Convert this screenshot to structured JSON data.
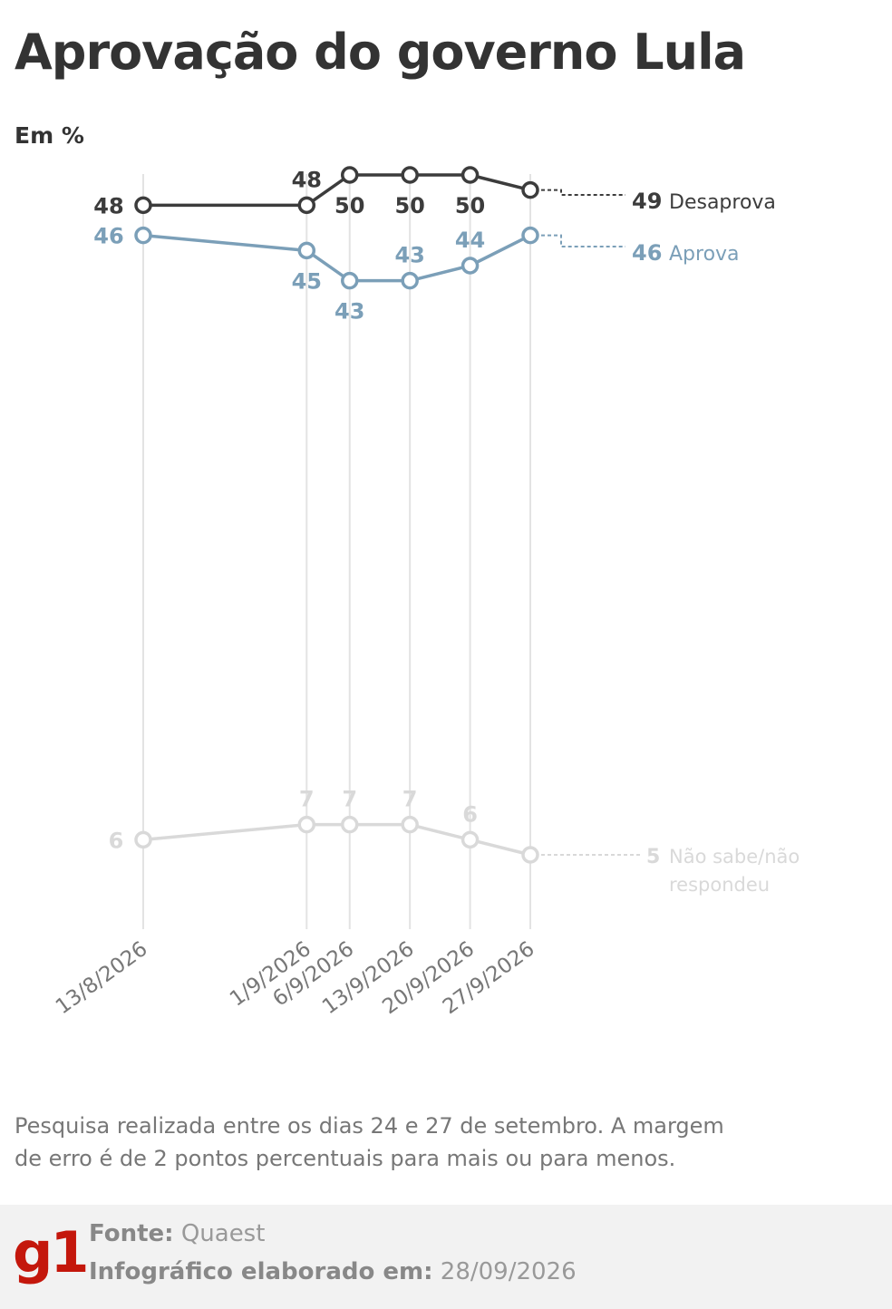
{
  "header": {
    "title": "Aprovação do governo Lula",
    "subtitle": "Em %"
  },
  "chart_data": {
    "type": "line",
    "x": [
      "13/8/2026",
      "1/9/2026",
      "6/9/2026",
      "13/9/2026",
      "20/9/2026",
      "27/9/2026"
    ],
    "ylim": [
      0,
      50
    ],
    "grid": "vertical lines at each date",
    "series": [
      {
        "name": "Desaprova",
        "values": [
          48,
          48,
          50,
          50,
          50,
          49
        ],
        "color": "#3c3c3c"
      },
      {
        "name": "Aprova",
        "values": [
          46,
          45,
          43,
          43,
          44,
          46
        ],
        "color": "#7b9fb8"
      },
      {
        "name": "Não sabe/não respondeu",
        "values": [
          6,
          7,
          7,
          7,
          6,
          5
        ],
        "color": "#d9d9d9"
      }
    ]
  },
  "note": "Pesquisa realizada entre os dias 24 e 27 de setembro. A margem de erro é de 2 pontos percentuais para mais ou para menos.",
  "footer": {
    "logo": "g1",
    "source_label": "Fonte:",
    "source_value": "Quaest",
    "made_label": "Infográfico elaborado em:",
    "made_value": "28/09/2026"
  },
  "colors": {
    "desaprova": "#3c3c3c",
    "aprova": "#7b9fb8",
    "nao_sabe": "#d9d9d9",
    "brand": "#c4170c"
  }
}
